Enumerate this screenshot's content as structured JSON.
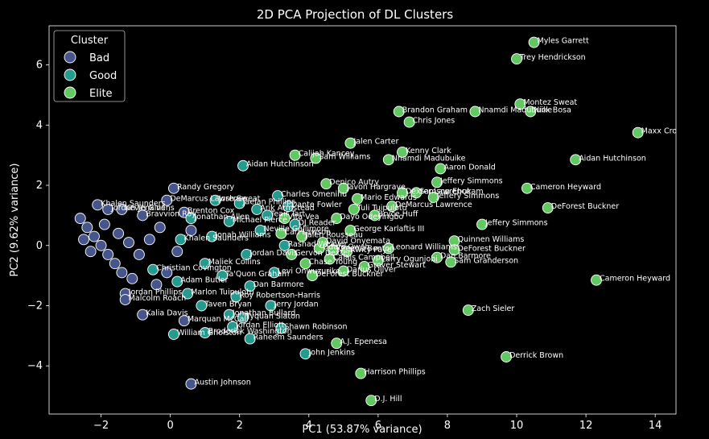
{
  "chart_data": {
    "type": "scatter",
    "title": "2D PCA Projection of DL Clusters",
    "xlabel": "PC1 (53.87% variance)",
    "ylabel": "PC2 (9.62% variance)",
    "xlim": [
      -3.5,
      14.6
    ],
    "ylim": [
      -5.6,
      7.3
    ],
    "xticks": [
      -2,
      0,
      2,
      4,
      6,
      8,
      10,
      12,
      14
    ],
    "yticks": [
      -4,
      -2,
      0,
      2,
      4,
      6
    ],
    "grid": false,
    "legend": {
      "title": "Cluster",
      "placement": "top-left"
    },
    "colors": {
      "Bad": "#46558c",
      "Good": "#259a8f",
      "Elite": "#62c862"
    },
    "series": [
      {
        "name": "Elite",
        "points": [
          {
            "x": 10.5,
            "y": 6.75,
            "label": "Myles Garrett"
          },
          {
            "x": 10.0,
            "y": 6.2,
            "label": "Trey Hendrickson"
          },
          {
            "x": 13.5,
            "y": 3.75,
            "label": "Maxx Crosby"
          },
          {
            "x": 10.1,
            "y": 4.7,
            "label": "Montez Sweat"
          },
          {
            "x": 10.4,
            "y": 4.45,
            "label": "Nick Bosa"
          },
          {
            "x": 8.8,
            "y": 4.45,
            "label": "Nnamdi Madubuike"
          },
          {
            "x": 6.6,
            "y": 4.45,
            "label": "Brandon Graham"
          },
          {
            "x": 6.9,
            "y": 4.1,
            "label": "Chris Jones"
          },
          {
            "x": 11.7,
            "y": 2.85,
            "label": "Aidan Hutchinson"
          },
          {
            "x": 10.3,
            "y": 1.9,
            "label": "Cameron Heyward"
          },
          {
            "x": 10.9,
            "y": 1.25,
            "label": "DeForest Buckner"
          },
          {
            "x": 9.0,
            "y": 0.7,
            "label": "Jeffery Simmons"
          },
          {
            "x": 8.2,
            "y": 0.15,
            "label": "Quinnen Williams"
          },
          {
            "x": 8.2,
            "y": -0.15,
            "label": "DeForest Buckner"
          },
          {
            "x": 8.1,
            "y": -0.55,
            "label": "Sam Granderson"
          },
          {
            "x": 12.3,
            "y": -1.15,
            "label": "Cameron Heyward"
          },
          {
            "x": 8.6,
            "y": -2.15,
            "label": "Zach Sieler"
          },
          {
            "x": 9.7,
            "y": -3.7,
            "label": "Derrick Brown"
          },
          {
            "x": 5.5,
            "y": -4.25,
            "label": "Harrison Phillips"
          },
          {
            "x": 5.8,
            "y": -5.15,
            "label": "D.J. Hill"
          },
          {
            "x": 4.8,
            "y": -3.25,
            "label": "A.J. Epenesa"
          },
          {
            "x": 7.8,
            "y": 2.55,
            "label": "Aaron Donald"
          },
          {
            "x": 7.7,
            "y": 2.1,
            "label": "Jeffery Simmons"
          },
          {
            "x": 6.7,
            "y": 3.1,
            "label": "Kenny Clark"
          },
          {
            "x": 6.3,
            "y": 2.85,
            "label": "Nnamdi Madubuike"
          },
          {
            "x": 7.6,
            "y": 1.6,
            "label": "Jeffery Simmons"
          },
          {
            "x": 6.4,
            "y": 1.3,
            "label": "DeMarcus Lawrence"
          },
          {
            "x": 5.2,
            "y": 3.4,
            "label": "Jalen Carter"
          },
          {
            "x": 4.5,
            "y": 2.05,
            "label": "Denico Autry"
          },
          {
            "x": 4.2,
            "y": 2.9,
            "label": "Sam Williams"
          },
          {
            "x": 3.6,
            "y": 3.0,
            "label": "Calijah Kancey"
          },
          {
            "x": 5.0,
            "y": 1.9,
            "label": "Javon Hargrave"
          },
          {
            "x": 6.7,
            "y": 1.75,
            "label": "Dexter Lawrence"
          },
          {
            "x": 5.4,
            "y": 1.55,
            "label": "Mario Edwards"
          },
          {
            "x": 7.1,
            "y": 1.75,
            "label": "Samson Ebukam"
          },
          {
            "x": 7.7,
            "y": -0.4,
            "label": "Dan Barmore"
          },
          {
            "x": 6.0,
            "y": -0.5,
            "label": "Larry Ogunjobi"
          },
          {
            "x": 5.6,
            "y": -0.7,
            "label": "Grover Stewart"
          },
          {
            "x": 5.0,
            "y": -0.85,
            "label": "Darius Oliver"
          },
          {
            "x": 4.3,
            "y": -0.1,
            "label": "Odafe Oweh"
          },
          {
            "x": 4.6,
            "y": -0.45,
            "label": "Calais Campbell"
          },
          {
            "x": 5.2,
            "y": 0.5,
            "label": "George Karlaftis III"
          },
          {
            "x": 5.9,
            "y": 1.0,
            "label": "Bryce Huff"
          },
          {
            "x": 4.8,
            "y": 0.9,
            "label": "Dayo Odeyingbo"
          },
          {
            "x": 3.8,
            "y": 0.3,
            "label": "Jalen Rousseau"
          },
          {
            "x": 4.1,
            "y": -1.0,
            "label": "DeForest Buckner"
          },
          {
            "x": 3.2,
            "y": 0.4,
            "label": "Carl Lawson"
          },
          {
            "x": 3.9,
            "y": -0.6,
            "label": "Chase Young"
          },
          {
            "x": 4.4,
            "y": 0.1,
            "label": "David Onyemata"
          },
          {
            "x": 5.1,
            "y": -0.2,
            "label": "Kwity Paye"
          },
          {
            "x": 6.3,
            "y": -0.1,
            "label": "Leonard Williams"
          },
          {
            "x": 3.5,
            "y": -0.3,
            "label": "Gervon Dexter"
          },
          {
            "x": 5.3,
            "y": 1.2,
            "label": "Tuli Tuipulotu"
          },
          {
            "x": 3.3,
            "y": 0.9,
            "label": "Vita Vea"
          },
          {
            "x": 4.7,
            "y": -0.15,
            "label": "Keeanu Benton"
          }
        ]
      },
      {
        "name": "Good",
        "points": [
          {
            "x": 2.1,
            "y": 2.65,
            "label": "Aidan Hutchinson"
          },
          {
            "x": 3.1,
            "y": 1.65,
            "label": "Charles Omenihu"
          },
          {
            "x": 2.0,
            "y": 1.4,
            "label": "Jaelan Phillips"
          },
          {
            "x": 1.3,
            "y": 1.5,
            "label": "Josh Sweat"
          },
          {
            "x": 3.4,
            "y": 1.3,
            "label": "Dante Fowler"
          },
          {
            "x": 2.5,
            "y": 1.2,
            "label": "Arik Armstead"
          },
          {
            "x": 3.9,
            "y": -3.6,
            "label": "John Jenkins"
          },
          {
            "x": 2.3,
            "y": -3.1,
            "label": "Raheem Saunders"
          },
          {
            "x": 3.2,
            "y": -2.75,
            "label": "Shawn Robinson"
          },
          {
            "x": 2.1,
            "y": -2.4,
            "label": "Tyquan Slaton"
          },
          {
            "x": 1.7,
            "y": -2.3,
            "label": "Jonathan Bullard"
          },
          {
            "x": 1.0,
            "y": -2.9,
            "label": "Broderick Washington"
          },
          {
            "x": 0.1,
            "y": -2.95,
            "label": "William Gholston"
          },
          {
            "x": 1.8,
            "y": -2.7,
            "label": "Jordan Elliott"
          },
          {
            "x": 0.9,
            "y": -2.0,
            "label": "Taven Bryan"
          },
          {
            "x": 2.9,
            "y": -2.0,
            "label": "Jerry Jordan"
          },
          {
            "x": 0.5,
            "y": -1.6,
            "label": "Marlon Tuipulotu"
          },
          {
            "x": 2.3,
            "y": -1.35,
            "label": "Dan Barmore"
          },
          {
            "x": 1.5,
            "y": -1.0,
            "label": "Ta'Quon Graham"
          },
          {
            "x": 3.0,
            "y": -0.9,
            "label": "Levi Onwuzurike"
          },
          {
            "x": 3.3,
            "y": 0.0,
            "label": "Rashad Weaver"
          },
          {
            "x": 2.6,
            "y": 0.5,
            "label": "Neville Gallimore"
          },
          {
            "x": 2.2,
            "y": -0.3,
            "label": "Jordan Davis"
          },
          {
            "x": 1.2,
            "y": 0.3,
            "label": "Jonah Williams"
          },
          {
            "x": 1.7,
            "y": 0.8,
            "label": "Michael Pierce"
          },
          {
            "x": 0.3,
            "y": 0.2,
            "label": "Khalen Saunders"
          },
          {
            "x": 1.0,
            "y": -0.6,
            "label": "Maliek Collins"
          },
          {
            "x": 0.2,
            "y": -1.2,
            "label": "Adam Butler"
          },
          {
            "x": -0.5,
            "y": -0.8,
            "label": "Christian Covington"
          },
          {
            "x": 2.8,
            "y": 1.0,
            "label": "Teair Tart"
          },
          {
            "x": 3.6,
            "y": 0.7,
            "label": "DJ Reader"
          },
          {
            "x": 0.6,
            "y": 0.9,
            "label": "Jonathan Allen"
          },
          {
            "x": 1.9,
            "y": -1.7,
            "label": "Roy Robertson-Harris"
          }
        ]
      },
      {
        "name": "Bad",
        "points": [
          {
            "x": 0.1,
            "y": 1.9,
            "label": "Randy Gregory"
          },
          {
            "x": -0.1,
            "y": 1.5,
            "label": "DeMarcus Lawrence"
          },
          {
            "x": 0.4,
            "y": 1.1,
            "label": "Brenton Cox"
          },
          {
            "x": -1.4,
            "y": 1.2,
            "label": "Kevin Givens"
          },
          {
            "x": -0.8,
            "y": -2.3,
            "label": "Kalia Davis"
          },
          {
            "x": -1.3,
            "y": -1.6,
            "label": "Jordan Phillips"
          },
          {
            "x": -1.3,
            "y": -1.8,
            "label": "Malcolm Roach"
          },
          {
            "x": 0.6,
            "y": -4.6,
            "label": "Austin Johnson"
          },
          {
            "x": 0.4,
            "y": -2.5,
            "label": "Marquan McCall"
          },
          {
            "x": -2.6,
            "y": 0.9,
            "label": null
          },
          {
            "x": -2.4,
            "y": 0.6,
            "label": null
          },
          {
            "x": -2.2,
            "y": 0.3,
            "label": null
          },
          {
            "x": -2.0,
            "y": 0.0,
            "label": null
          },
          {
            "x": -1.8,
            "y": -0.3,
            "label": null
          },
          {
            "x": -1.6,
            "y": -0.6,
            "label": null
          },
          {
            "x": -1.4,
            "y": -0.9,
            "label": null
          },
          {
            "x": -1.1,
            "y": -1.1,
            "label": null
          },
          {
            "x": -2.1,
            "y": 1.35,
            "label": "Khalen Saunders"
          },
          {
            "x": -1.8,
            "y": 1.2,
            "label": "Jordan Jenkins"
          },
          {
            "x": -0.8,
            "y": 1.0,
            "label": "Bravvion Roy"
          },
          {
            "x": -0.3,
            "y": 0.6,
            "label": null
          },
          {
            "x": -0.6,
            "y": 0.2,
            "label": null
          },
          {
            "x": -0.9,
            "y": -0.3,
            "label": null
          },
          {
            "x": 0.2,
            "y": -0.2,
            "label": null
          },
          {
            "x": -1.5,
            "y": 0.4,
            "label": null
          },
          {
            "x": -1.2,
            "y": 0.1,
            "label": null
          },
          {
            "x": -2.5,
            "y": 0.2,
            "label": null
          },
          {
            "x": -2.3,
            "y": -0.2,
            "label": null
          },
          {
            "x": -1.9,
            "y": 0.7,
            "label": null
          },
          {
            "x": -0.4,
            "y": -1.3,
            "label": null
          },
          {
            "x": -0.1,
            "y": -0.9,
            "label": null
          },
          {
            "x": 0.6,
            "y": 0.5,
            "label": null
          }
        ]
      }
    ]
  }
}
